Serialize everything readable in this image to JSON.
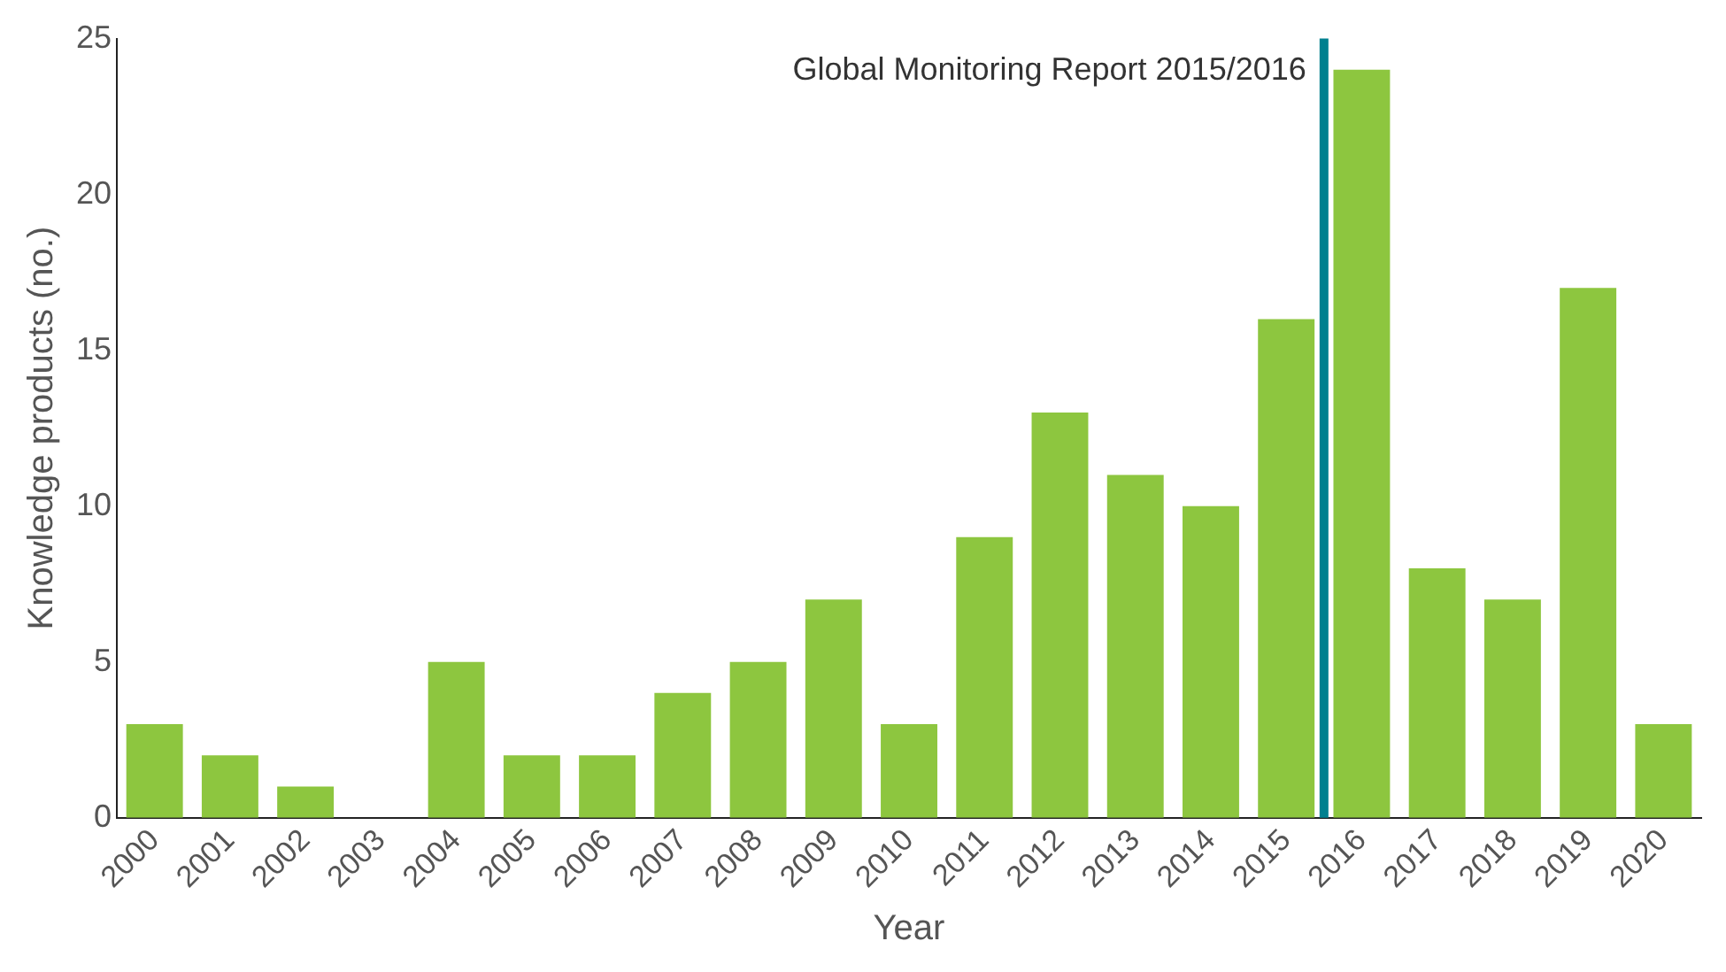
{
  "chart_data": {
    "type": "bar",
    "xlabel": "Year",
    "ylabel": "Knowledge products (no.)",
    "x": [
      2000,
      2001,
      2002,
      2003,
      2004,
      2005,
      2006,
      2007,
      2008,
      2009,
      2010,
      2011,
      2012,
      2013,
      2014,
      2015,
      2016,
      2017,
      2018,
      2019,
      2020
    ],
    "values": [
      3,
      2,
      1,
      0,
      5,
      2,
      2,
      4,
      5,
      7,
      3,
      9,
      13,
      11,
      10,
      16,
      24,
      8,
      7,
      17,
      3
    ],
    "color": "#8dc63f",
    "xlim": [
      1999.5,
      2020.5
    ],
    "xticks": [
      2000,
      2001,
      2002,
      2003,
      2004,
      2005,
      2006,
      2007,
      2008,
      2009,
      2010,
      2011,
      2012,
      2013,
      2014,
      2015,
      2016,
      2017,
      2018,
      2019,
      2020
    ],
    "ylim": [
      0,
      25
    ],
    "yticks": [
      0,
      5,
      10,
      15,
      20,
      25
    ],
    "ref_lines": [
      {
        "axis": "x",
        "value": 2015.5,
        "label": "Global Monitoring Report 2015/2016",
        "color": "#00808f"
      }
    ]
  }
}
